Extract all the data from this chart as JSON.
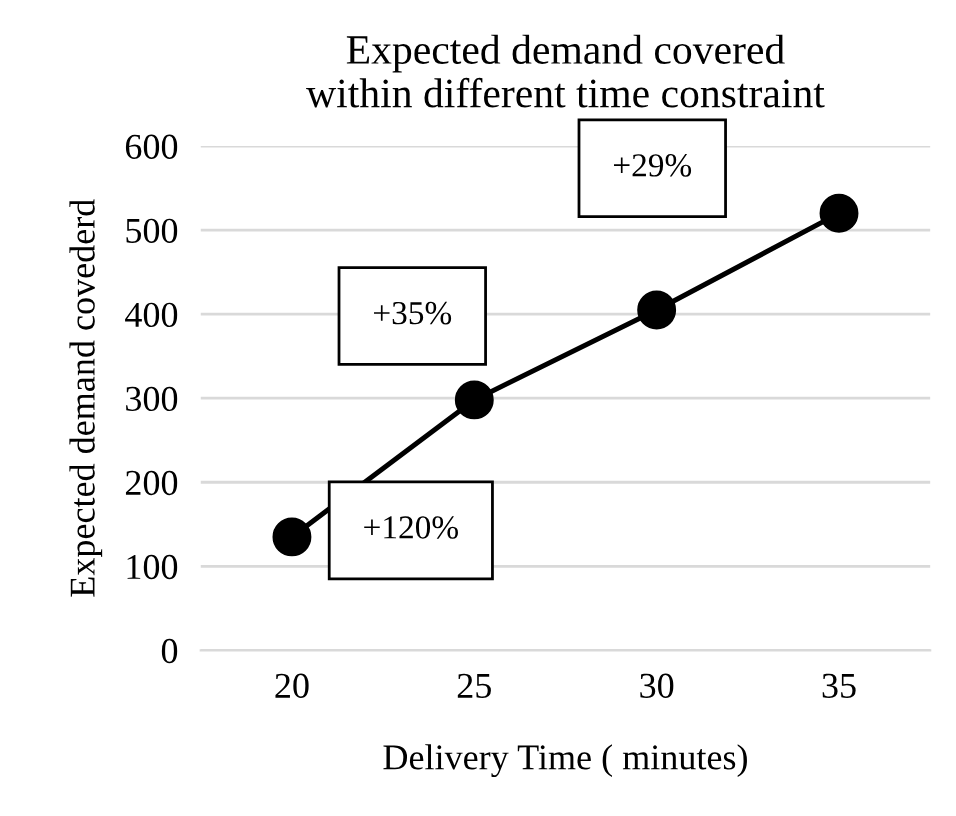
{
  "chart_data": {
    "type": "line",
    "title": "Expected demand covered\nwithin different time constraint",
    "xlabel": "Delivery Time ( minutes)",
    "ylabel": "Expected demand covederd",
    "categories": [
      "20",
      "25",
      "30",
      "35"
    ],
    "series": [
      {
        "color": "#000000",
        "values": [
          135,
          298,
          405,
          520
        ]
      }
    ],
    "ylim": [
      0,
      600
    ],
    "yticks": [
      0,
      100,
      200,
      300,
      400,
      500,
      600
    ],
    "grid": "y",
    "marker": "circle",
    "line_style": "solid",
    "legend": false,
    "annotations": [
      "+29%",
      "+35%",
      "+120%"
    ]
  }
}
